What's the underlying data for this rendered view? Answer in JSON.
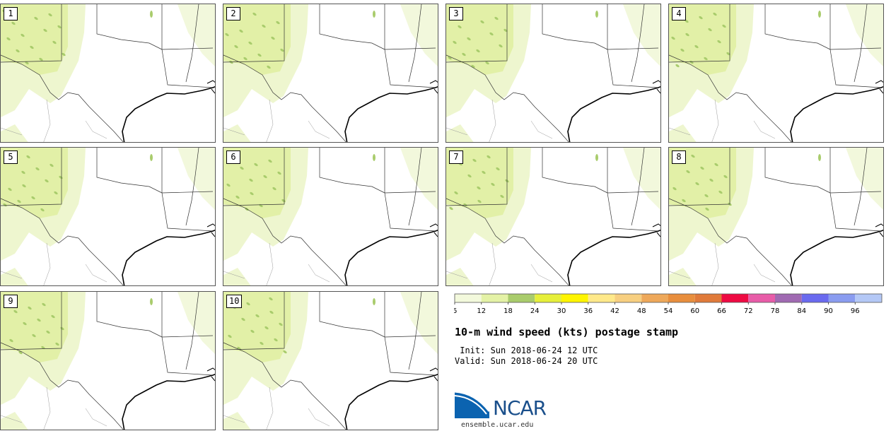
{
  "panels": [
    {
      "label": "1"
    },
    {
      "label": "2"
    },
    {
      "label": "3"
    },
    {
      "label": "4"
    },
    {
      "label": "5"
    },
    {
      "label": "6"
    },
    {
      "label": "7"
    },
    {
      "label": "8"
    },
    {
      "label": "9"
    },
    {
      "label": "10"
    }
  ],
  "legend": {
    "ticks": [
      "6",
      "12",
      "18",
      "24",
      "30",
      "36",
      "42",
      "48",
      "54",
      "60",
      "66",
      "72",
      "78",
      "84",
      "90",
      "96"
    ],
    "colors": [
      "#f3f9dc",
      "#e4f2a6",
      "#a9cc6c",
      "#e6ef3a",
      "#fff500",
      "#ffe98a",
      "#f7cf80",
      "#eea85a",
      "#e88e3d",
      "#e07a3a",
      "#ee0a42",
      "#e85ca8",
      "#a06ab2",
      "#6a6aef",
      "#8a9cf0",
      "#b4c8f6"
    ]
  },
  "title": "10-m wind speed (kts) postage stamp",
  "init": " Init: Sun 2018-06-24 12 UTC",
  "valid": "Valid: Sun 2018-06-24 20 UTC",
  "logo": {
    "name": "NCAR",
    "url": "ensemble.ucar.edu"
  }
}
